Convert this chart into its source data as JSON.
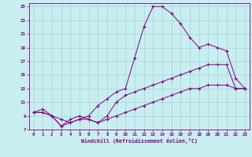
{
  "xlabel": "Windchill (Refroidissement éolien,°C)",
  "bg_color": "#c8eef0",
  "line_color": "#800080",
  "grid_color": "#a8d8dc",
  "xlim": [
    -0.5,
    23.5
  ],
  "ylim": [
    7,
    25.5
  ],
  "xticks": [
    0,
    1,
    2,
    3,
    4,
    5,
    6,
    7,
    8,
    9,
    10,
    11,
    12,
    13,
    14,
    15,
    16,
    17,
    18,
    19,
    20,
    21,
    22,
    23
  ],
  "yticks": [
    7,
    9,
    11,
    13,
    15,
    17,
    19,
    21,
    23,
    25
  ],
  "series1_x": [
    0,
    1,
    2,
    3,
    4,
    5,
    6,
    7,
    8,
    9,
    10,
    11,
    12,
    13,
    14,
    15,
    16,
    17,
    18,
    19,
    20,
    21,
    22,
    23
  ],
  "series1_y": [
    9.5,
    10.0,
    9.0,
    8.5,
    8.0,
    8.5,
    9.0,
    10.5,
    11.5,
    12.5,
    13.0,
    17.5,
    22.0,
    25.0,
    25.0,
    24.0,
    22.5,
    20.5,
    19.0,
    19.5,
    19.0,
    18.5,
    14.5,
    13.0
  ],
  "series2_x": [
    0,
    1,
    2,
    3,
    4,
    5,
    6,
    7,
    8,
    9,
    10,
    11,
    12,
    13,
    14,
    15,
    16,
    17,
    18,
    19,
    20,
    21,
    22,
    23
  ],
  "series2_y": [
    9.5,
    9.5,
    9.0,
    7.5,
    8.5,
    9.0,
    8.5,
    8.0,
    9.0,
    11.0,
    12.0,
    12.5,
    13.0,
    13.5,
    14.0,
    14.5,
    15.0,
    15.5,
    16.0,
    16.5,
    16.5,
    16.5,
    13.0,
    13.0
  ],
  "series3_x": [
    0,
    1,
    2,
    3,
    4,
    5,
    6,
    7,
    8,
    9,
    10,
    11,
    12,
    13,
    14,
    15,
    16,
    17,
    18,
    19,
    20,
    21,
    22,
    23
  ],
  "series3_y": [
    9.5,
    9.5,
    9.0,
    7.5,
    8.0,
    8.5,
    8.5,
    8.0,
    8.5,
    9.0,
    9.5,
    10.0,
    10.5,
    11.0,
    11.5,
    12.0,
    12.5,
    13.0,
    13.0,
    13.5,
    13.5,
    13.5,
    13.0,
    13.0
  ]
}
